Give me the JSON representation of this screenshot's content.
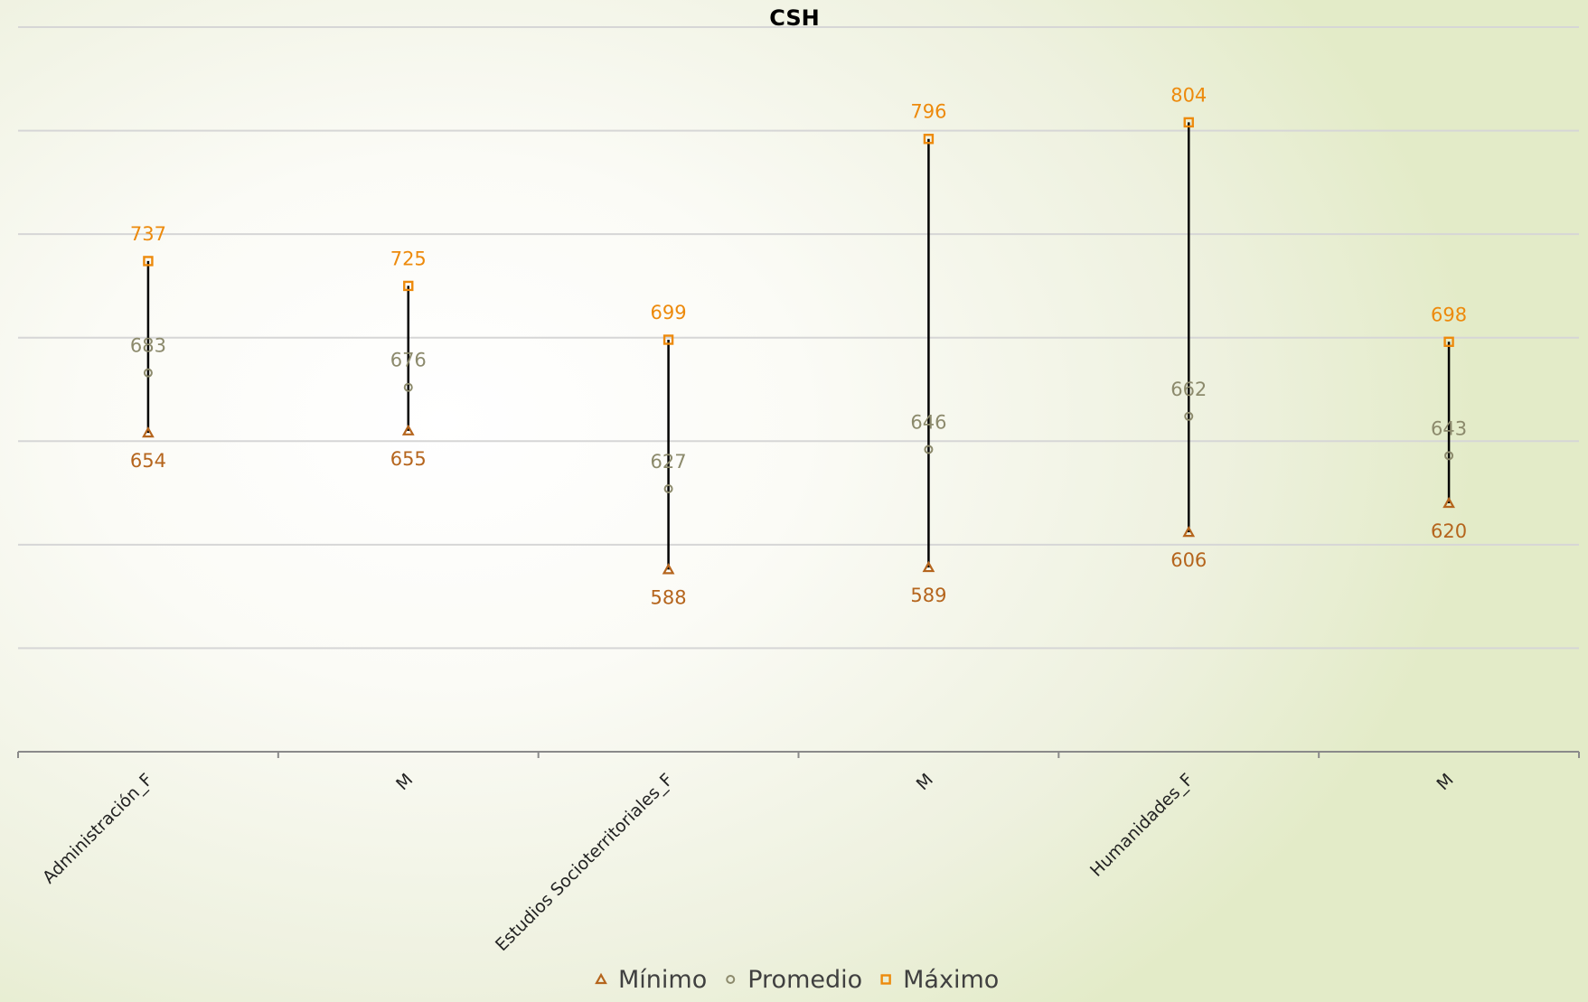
{
  "chart_data": {
    "type": "scatter",
    "title": "CSH",
    "xlabel": "",
    "ylabel": "",
    "categories": [
      "Administración_F",
      "M",
      "Estudios Socioterritoriales_F",
      "M",
      "Humanidades_F",
      "M"
    ],
    "series": [
      {
        "name": "Mínimo",
        "marker": "triangle",
        "color": "#b5651d",
        "values": [
          654,
          655,
          588,
          589,
          606,
          620
        ]
      },
      {
        "name": "Promedio",
        "marker": "circle",
        "color": "#8c8a6c",
        "values": [
          683,
          676,
          627,
          646,
          662,
          643
        ]
      },
      {
        "name": "Máximo",
        "marker": "square",
        "color": "#ed8a0c",
        "values": [
          737,
          725,
          699,
          796,
          804,
          698
        ]
      }
    ],
    "ylim": [
      500,
      850
    ],
    "grid": true,
    "legend": "bottom",
    "range_line_color": "#000000"
  }
}
